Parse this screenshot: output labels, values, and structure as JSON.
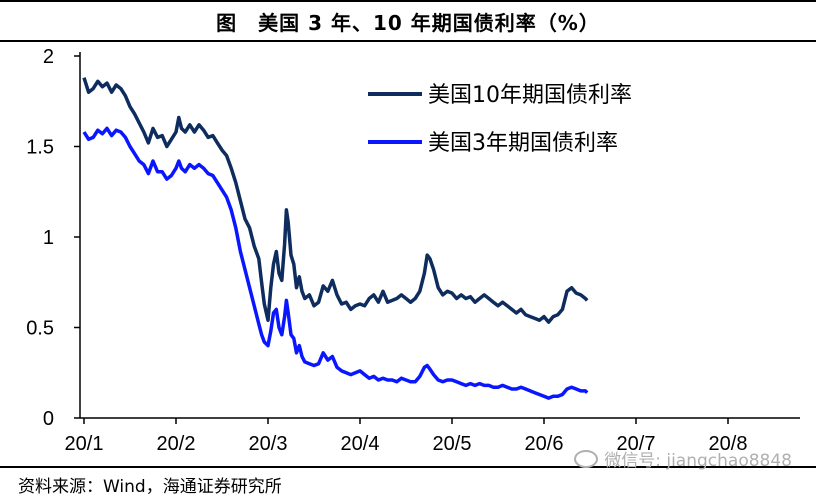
{
  "title": "图　美国 3 年、10 年期国债利率（%）",
  "source": "资料来源：Wind，海通证券研究所",
  "watermark": "微信号: jiangchao8848",
  "chart_data": {
    "type": "line",
    "title": "图　美国 3 年、10 年期国债利率（%）",
    "xlabel": "",
    "ylabel": "",
    "ylim": [
      0,
      2
    ],
    "yticks": [
      "0",
      "0.5",
      "1",
      "1.5",
      "2"
    ],
    "xticks": [
      "20/1",
      "20/2",
      "20/3",
      "20/4",
      "20/5",
      "20/6",
      "20/7",
      "20/8"
    ],
    "grid": false,
    "legend": "top-right",
    "series": [
      {
        "name": "美国10年期国债利率",
        "color": "#0f2c5e",
        "points": [
          [
            0.0,
            1.88
          ],
          [
            0.05,
            1.8
          ],
          [
            0.1,
            1.82
          ],
          [
            0.15,
            1.86
          ],
          [
            0.2,
            1.83
          ],
          [
            0.25,
            1.85
          ],
          [
            0.3,
            1.8
          ],
          [
            0.35,
            1.84
          ],
          [
            0.4,
            1.82
          ],
          [
            0.45,
            1.78
          ],
          [
            0.5,
            1.72
          ],
          [
            0.55,
            1.68
          ],
          [
            0.6,
            1.63
          ],
          [
            0.65,
            1.58
          ],
          [
            0.7,
            1.52
          ],
          [
            0.75,
            1.6
          ],
          [
            0.8,
            1.55
          ],
          [
            0.85,
            1.56
          ],
          [
            0.9,
            1.5
          ],
          [
            0.95,
            1.54
          ],
          [
            1.0,
            1.58
          ],
          [
            1.03,
            1.66
          ],
          [
            1.06,
            1.6
          ],
          [
            1.1,
            1.58
          ],
          [
            1.15,
            1.62
          ],
          [
            1.2,
            1.58
          ],
          [
            1.25,
            1.62
          ],
          [
            1.3,
            1.59
          ],
          [
            1.35,
            1.55
          ],
          [
            1.4,
            1.56
          ],
          [
            1.45,
            1.52
          ],
          [
            1.5,
            1.48
          ],
          [
            1.55,
            1.45
          ],
          [
            1.6,
            1.38
          ],
          [
            1.65,
            1.3
          ],
          [
            1.7,
            1.2
          ],
          [
            1.75,
            1.1
          ],
          [
            1.8,
            1.05
          ],
          [
            1.85,
            0.95
          ],
          [
            1.9,
            0.88
          ],
          [
            1.93,
            0.75
          ],
          [
            1.96,
            0.63
          ],
          [
            2.0,
            0.54
          ],
          [
            2.03,
            0.72
          ],
          [
            2.06,
            0.85
          ],
          [
            2.09,
            0.92
          ],
          [
            2.12,
            0.8
          ],
          [
            2.15,
            0.76
          ],
          [
            2.18,
            0.96
          ],
          [
            2.2,
            1.15
          ],
          [
            2.22,
            1.08
          ],
          [
            2.25,
            0.9
          ],
          [
            2.28,
            0.85
          ],
          [
            2.31,
            0.72
          ],
          [
            2.34,
            0.78
          ],
          [
            2.37,
            0.7
          ],
          [
            2.4,
            0.66
          ],
          [
            2.45,
            0.68
          ],
          [
            2.5,
            0.62
          ],
          [
            2.55,
            0.64
          ],
          [
            2.6,
            0.73
          ],
          [
            2.65,
            0.7
          ],
          [
            2.7,
            0.76
          ],
          [
            2.75,
            0.68
          ],
          [
            2.8,
            0.63
          ],
          [
            2.85,
            0.64
          ],
          [
            2.9,
            0.6
          ],
          [
            2.95,
            0.62
          ],
          [
            3.0,
            0.63
          ],
          [
            3.05,
            0.62
          ],
          [
            3.1,
            0.66
          ],
          [
            3.15,
            0.68
          ],
          [
            3.2,
            0.64
          ],
          [
            3.25,
            0.7
          ],
          [
            3.3,
            0.64
          ],
          [
            3.35,
            0.65
          ],
          [
            3.4,
            0.66
          ],
          [
            3.45,
            0.68
          ],
          [
            3.5,
            0.66
          ],
          [
            3.55,
            0.64
          ],
          [
            3.6,
            0.66
          ],
          [
            3.65,
            0.7
          ],
          [
            3.7,
            0.8
          ],
          [
            3.73,
            0.9
          ],
          [
            3.76,
            0.88
          ],
          [
            3.8,
            0.82
          ],
          [
            3.85,
            0.72
          ],
          [
            3.9,
            0.68
          ],
          [
            3.95,
            0.7
          ],
          [
            4.0,
            0.69
          ],
          [
            4.05,
            0.66
          ],
          [
            4.1,
            0.68
          ],
          [
            4.15,
            0.66
          ],
          [
            4.2,
            0.67
          ],
          [
            4.25,
            0.64
          ],
          [
            4.3,
            0.66
          ],
          [
            4.35,
            0.68
          ],
          [
            4.4,
            0.66
          ],
          [
            4.45,
            0.64
          ],
          [
            4.5,
            0.62
          ],
          [
            4.55,
            0.64
          ],
          [
            4.6,
            0.62
          ],
          [
            4.65,
            0.6
          ],
          [
            4.7,
            0.58
          ],
          [
            4.75,
            0.6
          ],
          [
            4.8,
            0.57
          ],
          [
            4.85,
            0.56
          ],
          [
            4.9,
            0.55
          ],
          [
            4.95,
            0.54
          ],
          [
            5.0,
            0.56
          ],
          [
            5.05,
            0.53
          ],
          [
            5.1,
            0.56
          ],
          [
            5.15,
            0.57
          ],
          [
            5.2,
            0.6
          ],
          [
            5.25,
            0.7
          ],
          [
            5.3,
            0.72
          ],
          [
            5.35,
            0.69
          ],
          [
            5.4,
            0.68
          ],
          [
            5.45,
            0.66
          ],
          [
            5.47,
            0.65
          ]
        ]
      },
      {
        "name": "美国3年期国债利率",
        "color": "#0a16ff",
        "points": [
          [
            0.0,
            1.58
          ],
          [
            0.05,
            1.54
          ],
          [
            0.1,
            1.55
          ],
          [
            0.15,
            1.59
          ],
          [
            0.2,
            1.57
          ],
          [
            0.25,
            1.6
          ],
          [
            0.3,
            1.56
          ],
          [
            0.35,
            1.59
          ],
          [
            0.4,
            1.58
          ],
          [
            0.45,
            1.55
          ],
          [
            0.5,
            1.5
          ],
          [
            0.55,
            1.46
          ],
          [
            0.6,
            1.42
          ],
          [
            0.65,
            1.4
          ],
          [
            0.7,
            1.35
          ],
          [
            0.75,
            1.42
          ],
          [
            0.8,
            1.36
          ],
          [
            0.85,
            1.36
          ],
          [
            0.9,
            1.32
          ],
          [
            0.95,
            1.34
          ],
          [
            1.0,
            1.38
          ],
          [
            1.03,
            1.42
          ],
          [
            1.06,
            1.38
          ],
          [
            1.1,
            1.36
          ],
          [
            1.15,
            1.4
          ],
          [
            1.2,
            1.38
          ],
          [
            1.25,
            1.4
          ],
          [
            1.3,
            1.38
          ],
          [
            1.35,
            1.35
          ],
          [
            1.4,
            1.34
          ],
          [
            1.45,
            1.3
          ],
          [
            1.5,
            1.26
          ],
          [
            1.55,
            1.22
          ],
          [
            1.6,
            1.15
          ],
          [
            1.65,
            1.05
          ],
          [
            1.7,
            0.92
          ],
          [
            1.75,
            0.82
          ],
          [
            1.8,
            0.72
          ],
          [
            1.85,
            0.62
          ],
          [
            1.9,
            0.52
          ],
          [
            1.93,
            0.46
          ],
          [
            1.96,
            0.42
          ],
          [
            2.0,
            0.4
          ],
          [
            2.03,
            0.48
          ],
          [
            2.06,
            0.58
          ],
          [
            2.09,
            0.6
          ],
          [
            2.12,
            0.5
          ],
          [
            2.15,
            0.46
          ],
          [
            2.18,
            0.56
          ],
          [
            2.2,
            0.65
          ],
          [
            2.22,
            0.58
          ],
          [
            2.25,
            0.46
          ],
          [
            2.28,
            0.44
          ],
          [
            2.31,
            0.36
          ],
          [
            2.34,
            0.4
          ],
          [
            2.37,
            0.34
          ],
          [
            2.4,
            0.31
          ],
          [
            2.45,
            0.3
          ],
          [
            2.5,
            0.29
          ],
          [
            2.55,
            0.3
          ],
          [
            2.6,
            0.36
          ],
          [
            2.65,
            0.32
          ],
          [
            2.7,
            0.34
          ],
          [
            2.75,
            0.28
          ],
          [
            2.8,
            0.26
          ],
          [
            2.85,
            0.25
          ],
          [
            2.9,
            0.24
          ],
          [
            2.95,
            0.25
          ],
          [
            3.0,
            0.26
          ],
          [
            3.05,
            0.24
          ],
          [
            3.1,
            0.22
          ],
          [
            3.15,
            0.23
          ],
          [
            3.2,
            0.21
          ],
          [
            3.25,
            0.22
          ],
          [
            3.3,
            0.21
          ],
          [
            3.35,
            0.21
          ],
          [
            3.4,
            0.2
          ],
          [
            3.45,
            0.22
          ],
          [
            3.5,
            0.21
          ],
          [
            3.55,
            0.2
          ],
          [
            3.6,
            0.2
          ],
          [
            3.65,
            0.23
          ],
          [
            3.7,
            0.28
          ],
          [
            3.73,
            0.29
          ],
          [
            3.76,
            0.27
          ],
          [
            3.8,
            0.24
          ],
          [
            3.85,
            0.21
          ],
          [
            3.9,
            0.2
          ],
          [
            3.95,
            0.21
          ],
          [
            4.0,
            0.21
          ],
          [
            4.05,
            0.2
          ],
          [
            4.1,
            0.19
          ],
          [
            4.15,
            0.18
          ],
          [
            4.2,
            0.19
          ],
          [
            4.25,
            0.18
          ],
          [
            4.3,
            0.19
          ],
          [
            4.35,
            0.18
          ],
          [
            4.4,
            0.18
          ],
          [
            4.45,
            0.17
          ],
          [
            4.5,
            0.17
          ],
          [
            4.55,
            0.18
          ],
          [
            4.6,
            0.17
          ],
          [
            4.65,
            0.16
          ],
          [
            4.7,
            0.16
          ],
          [
            4.75,
            0.17
          ],
          [
            4.8,
            0.16
          ],
          [
            4.85,
            0.15
          ],
          [
            4.9,
            0.14
          ],
          [
            4.95,
            0.13
          ],
          [
            5.0,
            0.12
          ],
          [
            5.05,
            0.11
          ],
          [
            5.1,
            0.12
          ],
          [
            5.15,
            0.12
          ],
          [
            5.2,
            0.13
          ],
          [
            5.25,
            0.16
          ],
          [
            5.3,
            0.17
          ],
          [
            5.35,
            0.16
          ],
          [
            5.4,
            0.15
          ],
          [
            5.45,
            0.15
          ],
          [
            5.47,
            0.14
          ]
        ]
      }
    ]
  }
}
